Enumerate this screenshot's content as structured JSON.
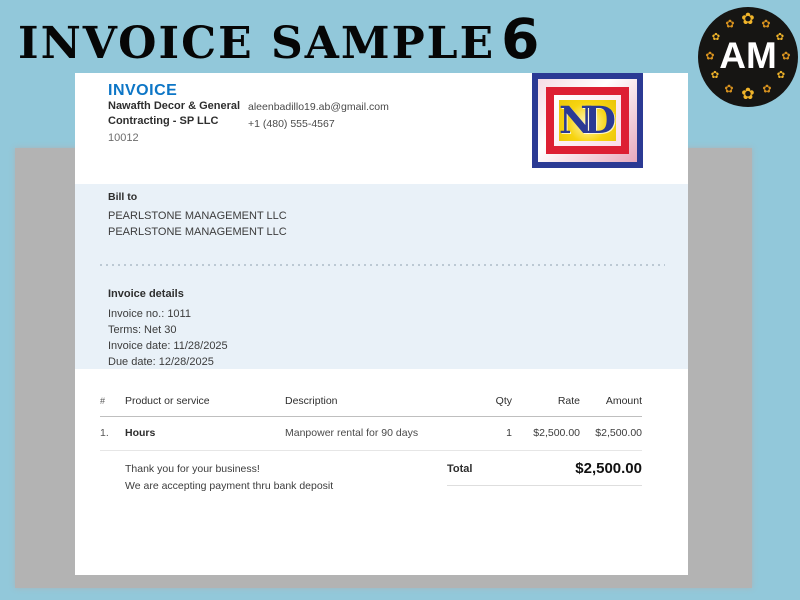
{
  "page": {
    "title": "INVOICE SAMPLE",
    "title_number": "6"
  },
  "brand_logo": {
    "text": "AM",
    "flower_glyph": "✿"
  },
  "colors": {
    "page_background": "#92c8da",
    "backdrop_gray": "#b3b3b3",
    "invoice_heading_blue": "#0d76c6",
    "section_background": "#e9f1f8",
    "nd_logo_blue": "#2b3a94",
    "nd_logo_red": "#dd1f33",
    "nd_logo_yellow": "#f7d410",
    "am_logo_gold": "#f0b42a"
  },
  "invoice": {
    "header": {
      "title": "INVOICE",
      "company_name_line1": "Nawafth Decor & General",
      "company_name_line2": "Contracting - SP LLC",
      "company_number": "10012",
      "email": "aleenbadillo19.ab@gmail.com",
      "phone": "+1 (480) 555-4567",
      "logo_text": "ND"
    },
    "bill_to": {
      "label": "Bill to",
      "line1": "PEARLSTONE MANAGEMENT LLC",
      "line2": "PEARLSTONE MANAGEMENT LLC"
    },
    "details": {
      "heading": "Invoice details",
      "invoice_no": "Invoice no.: 1011",
      "terms": "Terms: Net 30",
      "invoice_date": "Invoice date: 11/28/2025",
      "due_date": "Due date: 12/28/2025"
    },
    "table": {
      "headers": {
        "num": "#",
        "product": "Product or service",
        "description": "Description",
        "qty": "Qty",
        "rate": "Rate",
        "amount": "Amount"
      },
      "rows": [
        {
          "num": "1.",
          "product": "Hours",
          "description": "Manpower rental for 90 days",
          "qty": "1",
          "rate": "$2,500.00",
          "amount": "$2,500.00"
        }
      ]
    },
    "total": {
      "label": "Total",
      "amount": "$2,500.00"
    },
    "footer": {
      "line1": "Thank you for your business!",
      "line2": "We are accepting payment thru bank deposit"
    }
  }
}
